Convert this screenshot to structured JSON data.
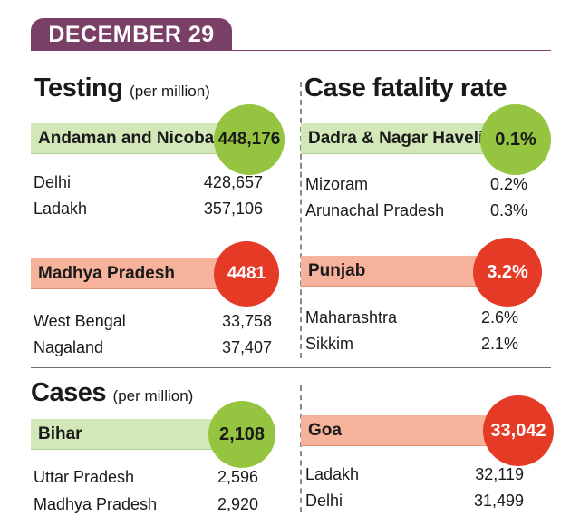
{
  "banner": {
    "date": "DECEMBER 29"
  },
  "testing": {
    "title": "Testing",
    "subtitle": "(per million)",
    "top": {
      "name": "Andaman and Nicobar",
      "value": "448,176"
    },
    "top_rows": [
      {
        "name": "Delhi",
        "value": "428,657"
      },
      {
        "name": "Ladakh",
        "value": "357,106"
      }
    ],
    "bottom": {
      "name": "Madhya Pradesh",
      "value": "4481"
    },
    "bottom_rows": [
      {
        "name": "West Bengal",
        "value": "33,758"
      },
      {
        "name": "Nagaland",
        "value": "37,407"
      }
    ]
  },
  "cfr": {
    "title": "Case fatality rate",
    "top": {
      "name": "Dadra & Nagar Haveli",
      "value": "0.1%"
    },
    "top_rows": [
      {
        "name": "Mizoram",
        "value": "0.2%"
      },
      {
        "name": "Arunachal Pradesh",
        "value": "0.3%"
      }
    ],
    "bottom": {
      "name": "Punjab",
      "value": "3.2%"
    },
    "bottom_rows": [
      {
        "name": "Maharashtra",
        "value": "2.6%"
      },
      {
        "name": "Sikkim",
        "value": "2.1%"
      }
    ]
  },
  "cases": {
    "title": "Cases",
    "subtitle": "(per million)",
    "low": {
      "name": "Bihar",
      "value": "2,108"
    },
    "low_rows": [
      {
        "name": "Uttar Pradesh",
        "value": "2,596"
      },
      {
        "name": "Madhya Pradesh",
        "value": "2,920"
      }
    ],
    "high": {
      "name": "Goa",
      "value": "33,042"
    },
    "high_rows": [
      {
        "name": "Ladakh",
        "value": "32,119"
      },
      {
        "name": "Delhi",
        "value": "31,499"
      }
    ]
  },
  "colors": {
    "banner": "#7a3f66",
    "green_circle": "#95c540",
    "green_bar": "#d3e8b8",
    "red_circle": "#e53a26",
    "red_bar": "#f6b29a"
  }
}
